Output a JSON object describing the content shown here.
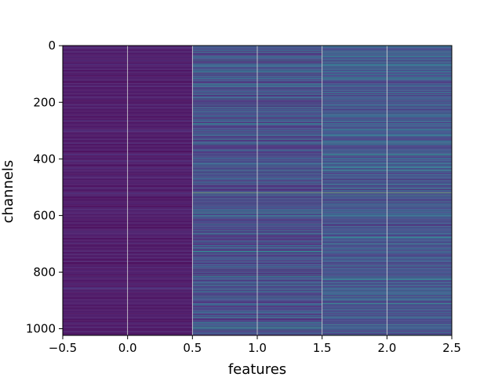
{
  "chart_data": {
    "type": "heatmap",
    "title": "",
    "xlabel": "features",
    "ylabel": "channels",
    "xlim": [
      -0.5,
      2.5
    ],
    "ylim": [
      1023.5,
      -0.5
    ],
    "y_inverted": true,
    "rows": 1024,
    "columns": [
      0,
      1,
      2
    ],
    "x_ticks": [
      -0.5,
      0.0,
      0.5,
      1.0,
      1.5,
      2.0,
      2.5
    ],
    "x_tick_labels": [
      "−0.5",
      "0.0",
      "0.5",
      "1.0",
      "1.5",
      "2.0",
      "2.5"
    ],
    "y_ticks": [
      0,
      200,
      400,
      600,
      800,
      1000
    ],
    "y_tick_labels": [
      "0",
      "200",
      "400",
      "600",
      "800",
      "1000"
    ],
    "grid": true,
    "colormap": "viridis",
    "column_value_ranges": [
      {
        "feature": 0,
        "min": 0.0,
        "max": 0.3,
        "mean": 0.12
      },
      {
        "feature": 1,
        "min": 0.1,
        "max": 0.95,
        "mean": 0.32
      },
      {
        "feature": 2,
        "min": 0.15,
        "max": 0.95,
        "mean": 0.4
      }
    ],
    "highlight_rows": [
      {
        "channel": 440,
        "values": [
          0.1,
          0.55,
          0.75
        ]
      },
      {
        "channel": 520,
        "values": [
          0.15,
          0.95,
          0.95
        ]
      },
      {
        "channel": 560,
        "values": [
          0.1,
          0.55,
          0.55
        ]
      },
      {
        "channel": 750,
        "values": [
          0.1,
          0.55,
          0.6
        ]
      },
      {
        "channel": 955,
        "values": [
          0.08,
          0.45,
          0.65
        ]
      }
    ]
  }
}
